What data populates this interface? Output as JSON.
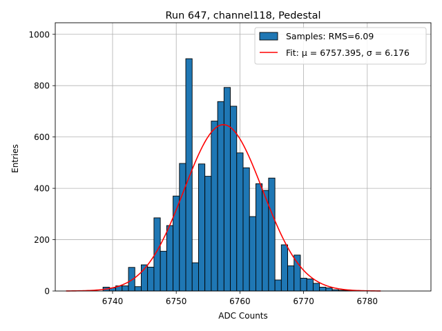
{
  "chart_data": {
    "type": "bar",
    "title": "Run 647, channel118, Pedestal",
    "xlabel": "ADC Counts",
    "ylabel": "Entries",
    "xlim": [
      6731,
      6790
    ],
    "ylim": [
      0,
      1045
    ],
    "xticks": [
      6740,
      6750,
      6760,
      6770,
      6780
    ],
    "yticks": [
      0,
      200,
      400,
      600,
      800,
      1000
    ],
    "grid": true,
    "legend_position": "top-right",
    "bin_width": 1,
    "bars_x": [
      6739,
      6740,
      6741,
      6742,
      6743,
      6744,
      6745,
      6746,
      6747,
      6748,
      6749,
      6750,
      6751,
      6752,
      6753,
      6754,
      6755,
      6756,
      6757,
      6758,
      6759,
      6760,
      6761,
      6762,
      6763,
      6764,
      6765,
      6766,
      6767,
      6768,
      6769,
      6770,
      6771,
      6772,
      6773,
      6774,
      6775,
      6776,
      6777
    ],
    "bars_y": [
      15,
      12,
      20,
      20,
      92,
      17,
      102,
      93,
      285,
      155,
      255,
      370,
      497,
      905,
      110,
      495,
      447,
      662,
      738,
      793,
      720,
      538,
      480,
      290,
      418,
      392,
      440,
      43,
      180,
      98,
      140,
      50,
      47,
      30,
      15,
      12,
      5,
      3,
      2
    ],
    "series": [
      {
        "name": "Samples: RMS=6.09",
        "kind": "histogram",
        "color": "#1f77b4",
        "edgecolor": "#000000"
      },
      {
        "name": "Fit: μ = 6757.395, σ = 6.176",
        "kind": "gaussian-line",
        "color": "#ff0000",
        "mu": 6757.395,
        "sigma": 6.176,
        "amplitude": 648,
        "x_range": [
          6732.7,
          6782.1
        ]
      }
    ]
  }
}
